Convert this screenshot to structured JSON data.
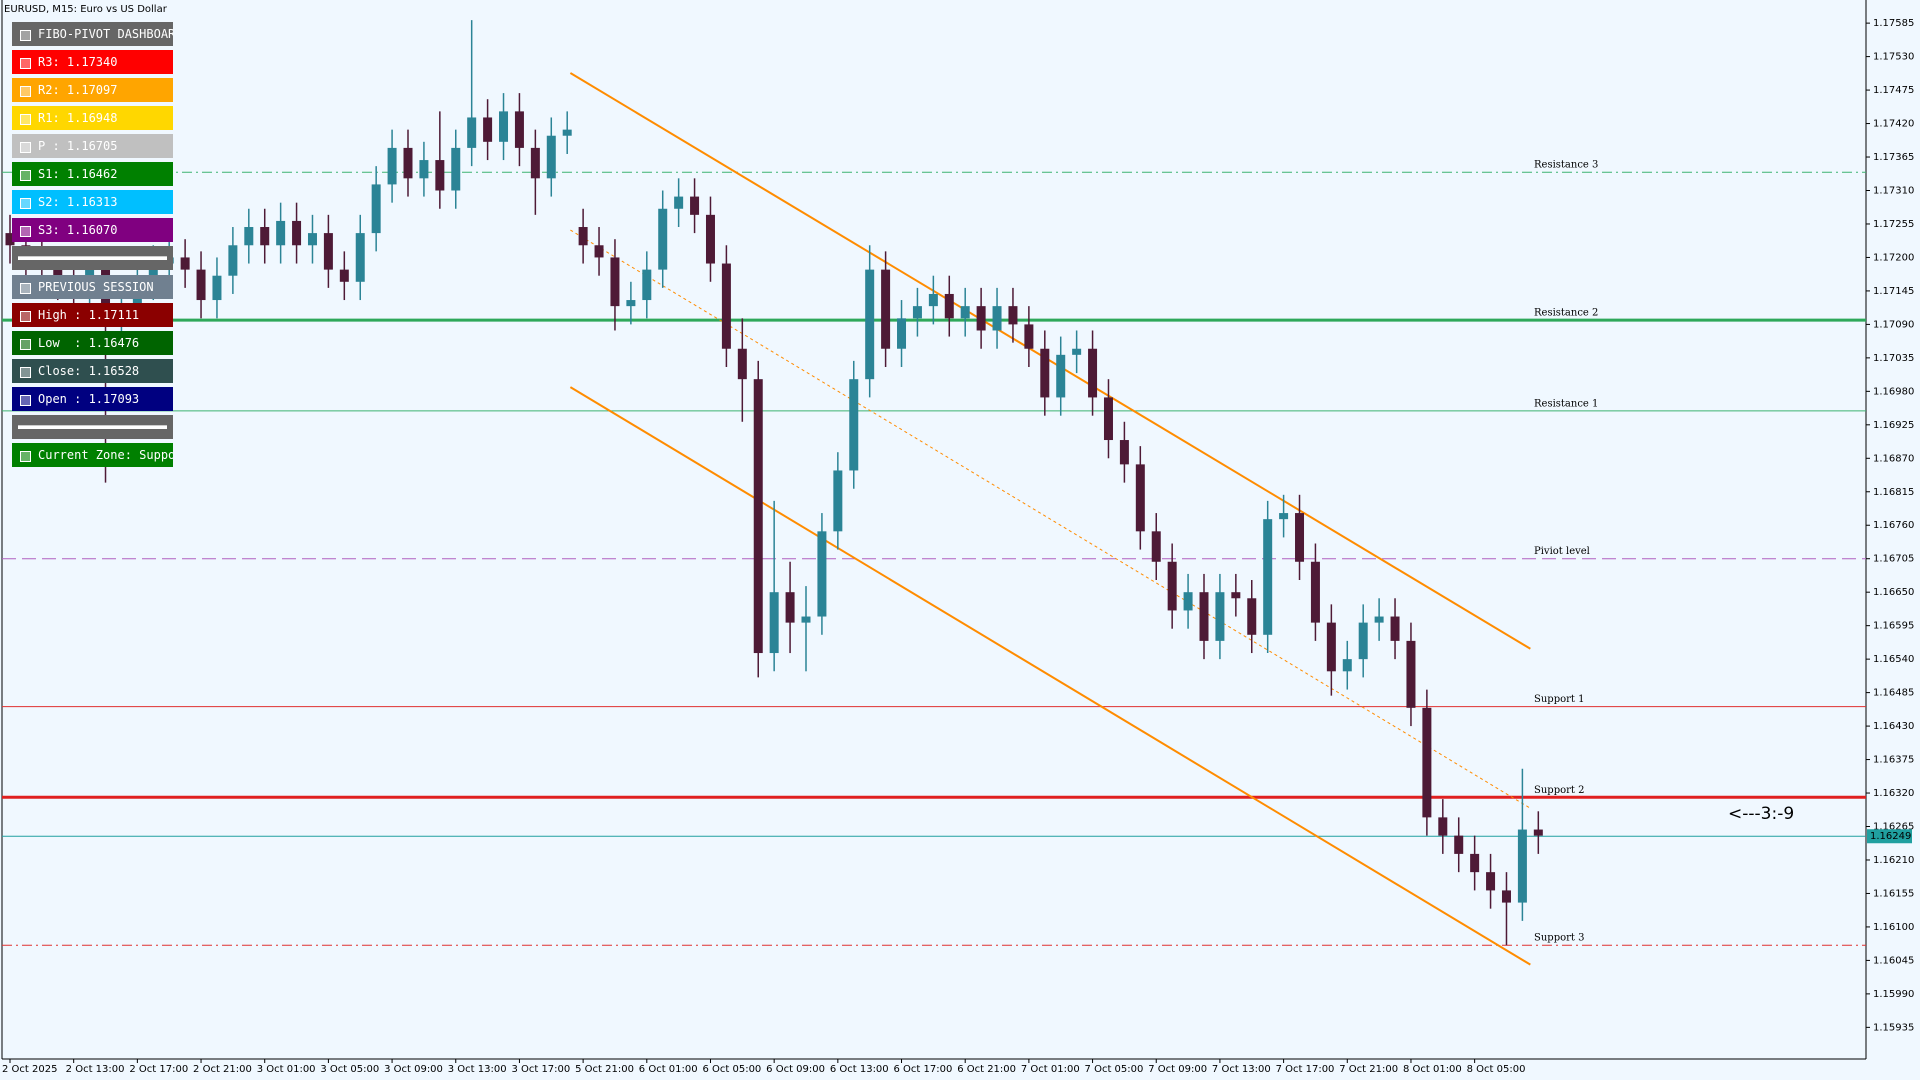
{
  "chart_data": {
    "type": "candlestick",
    "title": "EURUSD, M15:  Euro vs US Dollar",
    "colors": {
      "up": "#2b8496",
      "down": "#4e1a36"
    },
    "grid": false,
    "open": [
      1.1724,
      1.1722,
      1.172,
      1.1718,
      1.1716,
      1.1714,
      1.1718,
      1.171,
      1.1712,
      1.1716,
      1.1719,
      1.172,
      1.1718,
      1.1713,
      1.1717,
      1.1722,
      1.1725,
      1.1722,
      1.1726,
      1.1722,
      1.1724,
      1.1718,
      1.1716,
      1.1724,
      1.1732,
      1.1738,
      1.1733,
      1.1736,
      1.1731,
      1.1738,
      1.1743,
      1.1739,
      1.1744,
      1.1738,
      1.1733,
      1.174,
      1.1725,
      1.1722,
      1.172,
      1.1712,
      1.1713,
      1.1718,
      1.1728,
      1.173,
      1.1727,
      1.1719,
      1.1705,
      1.17,
      1.1655,
      1.1665,
      1.166,
      1.1661,
      1.1675,
      1.1685,
      1.17,
      1.1718,
      1.1705,
      1.171,
      1.1712,
      1.1714,
      1.171,
      1.1712,
      1.1708,
      1.1712,
      1.1709,
      1.1705,
      1.1697,
      1.1704,
      1.1705,
      1.1697,
      1.169,
      1.1686,
      1.1675,
      1.167,
      1.1662,
      1.1665,
      1.1657,
      1.1665,
      1.1664,
      1.1658,
      1.1677,
      1.1678,
      1.167,
      1.166,
      1.1652,
      1.1654,
      1.166,
      1.1661,
      1.1657,
      1.1646,
      1.1628,
      1.1625,
      1.1622,
      1.1619,
      1.1616,
      1.1614,
      1.1626
    ],
    "high": [
      1.1727,
      1.1725,
      1.1723,
      1.1721,
      1.1719,
      1.1721,
      1.1721,
      1.1715,
      1.1719,
      1.1722,
      1.1723,
      1.1723,
      1.1721,
      1.172,
      1.1725,
      1.1728,
      1.1728,
      1.1729,
      1.1729,
      1.1727,
      1.1727,
      1.1721,
      1.1727,
      1.1735,
      1.1741,
      1.1741,
      1.1739,
      1.1744,
      1.1741,
      1.1759,
      1.1746,
      1.1747,
      1.1747,
      1.1741,
      1.1743,
      1.1744,
      1.1728,
      1.1725,
      1.1723,
      1.1716,
      1.1721,
      1.1731,
      1.1733,
      1.1733,
      1.173,
      1.1722,
      1.171,
      1.1703,
      1.168,
      1.167,
      1.1666,
      1.1678,
      1.1688,
      1.1703,
      1.1722,
      1.1721,
      1.1713,
      1.1715,
      1.1717,
      1.1717,
      1.1715,
      1.1715,
      1.1715,
      1.1715,
      1.1712,
      1.1708,
      1.1707,
      1.1708,
      1.1708,
      1.17,
      1.1693,
      1.1689,
      1.1678,
      1.1673,
      1.1668,
      1.1668,
      1.1668,
      1.1668,
      1.1667,
      1.168,
      1.1681,
      1.1681,
      1.1673,
      1.1663,
      1.1657,
      1.1663,
      1.1664,
      1.1664,
      1.166,
      1.1649,
      1.1631,
      1.1628,
      1.1625,
      1.1622,
      1.1619,
      1.1636,
      1.1629
    ],
    "low": [
      1.1719,
      1.1717,
      1.1715,
      1.1713,
      1.1711,
      1.1711,
      1.1683,
      1.1707,
      1.1709,
      1.1713,
      1.1716,
      1.1715,
      1.171,
      1.171,
      1.1714,
      1.1719,
      1.1719,
      1.1719,
      1.1719,
      1.1719,
      1.1715,
      1.1713,
      1.1713,
      1.1721,
      1.1729,
      1.173,
      1.173,
      1.1728,
      1.1728,
      1.1735,
      1.1736,
      1.1736,
      1.1735,
      1.1727,
      1.173,
      1.1737,
      1.1719,
      1.1717,
      1.1708,
      1.1709,
      1.171,
      1.1715,
      1.1725,
      1.1724,
      1.1716,
      1.1702,
      1.1693,
      1.1651,
      1.1652,
      1.1655,
      1.1652,
      1.1658,
      1.1672,
      1.1682,
      1.1697,
      1.1702,
      1.1702,
      1.1707,
      1.1709,
      1.1707,
      1.1707,
      1.1705,
      1.1705,
      1.1706,
      1.1702,
      1.1694,
      1.1694,
      1.1701,
      1.1694,
      1.1687,
      1.1683,
      1.1672,
      1.1667,
      1.1659,
      1.1659,
      1.1654,
      1.1654,
      1.1661,
      1.1655,
      1.1655,
      1.1674,
      1.1667,
      1.1657,
      1.1648,
      1.1649,
      1.1651,
      1.1657,
      1.1654,
      1.1643,
      1.1625,
      1.1622,
      1.1619,
      1.1616,
      1.1613,
      1.1607,
      1.1611,
      1.1622
    ],
    "close": [
      1.1722,
      1.172,
      1.1718,
      1.1716,
      1.1714,
      1.1718,
      1.171,
      1.1712,
      1.1716,
      1.1719,
      1.172,
      1.1718,
      1.1713,
      1.1717,
      1.1722,
      1.1725,
      1.1722,
      1.1726,
      1.1722,
      1.1724,
      1.1718,
      1.1716,
      1.1724,
      1.1732,
      1.1738,
      1.1733,
      1.1736,
      1.1731,
      1.1738,
      1.1743,
      1.1739,
      1.1744,
      1.1738,
      1.1733,
      1.174,
      1.1741,
      1.1722,
      1.172,
      1.1712,
      1.1713,
      1.1718,
      1.1728,
      1.173,
      1.1727,
      1.1719,
      1.1705,
      1.17,
      1.1655,
      1.1665,
      1.166,
      1.1661,
      1.1675,
      1.1685,
      1.17,
      1.1718,
      1.1705,
      1.171,
      1.1712,
      1.1714,
      1.171,
      1.1712,
      1.1708,
      1.1712,
      1.1709,
      1.1705,
      1.1697,
      1.1704,
      1.1705,
      1.1697,
      1.169,
      1.1686,
      1.1675,
      1.167,
      1.1662,
      1.1665,
      1.1657,
      1.1665,
      1.1664,
      1.1658,
      1.1677,
      1.1678,
      1.167,
      1.166,
      1.1652,
      1.1654,
      1.166,
      1.1661,
      1.1657,
      1.1646,
      1.1628,
      1.1625,
      1.1622,
      1.1619,
      1.1616,
      1.1614,
      1.1626,
      1.1625
    ],
    "xticks": [
      {
        "value": 0,
        "label": "2 Oct 2025"
      },
      {
        "value": 4,
        "label": "2 Oct 13:00"
      },
      {
        "value": 8,
        "label": "2 Oct 17:00"
      },
      {
        "value": 12,
        "label": "2 Oct 21:00"
      },
      {
        "value": 16,
        "label": "3 Oct 01:00"
      },
      {
        "value": 20,
        "label": "3 Oct 05:00"
      },
      {
        "value": 24,
        "label": "3 Oct 09:00"
      },
      {
        "value": 28,
        "label": "3 Oct 13:00"
      },
      {
        "value": 32,
        "label": "3 Oct 17:00"
      },
      {
        "value": 36,
        "label": "5 Oct 21:00"
      },
      {
        "value": 40,
        "label": "6 Oct 01:00"
      },
      {
        "value": 44,
        "label": "6 Oct 05:00"
      },
      {
        "value": 48,
        "label": "6 Oct 09:00"
      },
      {
        "value": 52,
        "label": "6 Oct 13:00"
      },
      {
        "value": 56,
        "label": "6 Oct 17:00"
      },
      {
        "value": 60,
        "label": "6 Oct 21:00"
      },
      {
        "value": 64,
        "label": "7 Oct 01:00"
      },
      {
        "value": 68,
        "label": "7 Oct 05:00"
      },
      {
        "value": 72,
        "label": "7 Oct 09:00"
      },
      {
        "value": 76,
        "label": "7 Oct 13:00"
      },
      {
        "value": 80,
        "label": "7 Oct 17:00"
      },
      {
        "value": 84,
        "label": "7 Oct 21:00"
      },
      {
        "value": 88,
        "label": "8 Oct 01:00"
      },
      {
        "value": 92,
        "label": "8 Oct 05:00"
      }
    ],
    "ylim": [
      1.15883,
      1.17623
    ],
    "yticks": [
      1.17585,
      {
        "value": 1.1753,
        "label": "1.17530"
      },
      1.17475,
      {
        "value": 1.1742,
        "label": "1.17420"
      },
      1.17365,
      {
        "value": 1.1731,
        "label": "1.17310"
      },
      1.17255,
      {
        "value": 1.172,
        "label": "1.17200"
      },
      1.17145,
      {
        "value": 1.1709,
        "label": "1.17090"
      },
      1.17035,
      {
        "value": 1.1698,
        "label": "1.16980"
      },
      1.16925,
      {
        "value": 1.1687,
        "label": "1.16870"
      },
      1.16815,
      {
        "value": 1.1676,
        "label": "1.16760"
      },
      1.16705,
      {
        "value": 1.1665,
        "label": "1.16650"
      },
      1.16595,
      {
        "value": 1.1654,
        "label": "1.16540"
      },
      1.16485,
      {
        "value": 1.1643,
        "label": "1.16430"
      },
      1.16375,
      {
        "value": 1.1632,
        "label": "1.16320"
      },
      1.16265,
      {
        "value": 1.1621,
        "label": "1.16210"
      },
      1.16155,
      {
        "value": 1.161,
        "label": "1.16100"
      },
      1.16045,
      {
        "value": 1.1599,
        "label": "1.15990"
      },
      1.15935
    ],
    "levels": [
      {
        "label": "Resistance 3",
        "value": 1.1734,
        "color": "#3cb371",
        "width": 1,
        "style": "dashdot"
      },
      {
        "label": "Resistance 2",
        "value": 1.17097,
        "color": "#2ea85a",
        "width": 3,
        "style": "solid"
      },
      {
        "label": "Resistance 1",
        "value": 1.16948,
        "color": "#3cb371",
        "width": 1,
        "style": "solid"
      },
      {
        "label": "Piviot level",
        "value": 1.16705,
        "color": "#b060c0",
        "width": 1,
        "style": "dashed"
      },
      {
        "label": "Support 1",
        "value": 1.16462,
        "color": "#e03030",
        "width": 1,
        "style": "solid"
      },
      {
        "label": "Support 2",
        "value": 1.16313,
        "color": "#e02020",
        "width": 3,
        "style": "solid"
      },
      {
        "label": "Support 3",
        "value": 1.1607,
        "color": "#e03030",
        "width": 1,
        "style": "dashdot"
      }
    ],
    "channel": {
      "color": "#ff8c00",
      "x": [
        35.2,
        95.5
      ],
      "upper": [
        1.17503,
        1.16557
      ],
      "mid": [
        1.17245,
        1.16295
      ],
      "lower": [
        1.16987,
        1.16038
      ]
    },
    "current_price": 1.16249,
    "annotation": "<---3:-9"
  },
  "dashboard": {
    "title": "FIBO-PIVOT DASHBOARD",
    "levels": [
      "R3: 1.17340",
      "R2: 1.17097",
      "R1: 1.16948",
      "P : 1.16705",
      "S1: 1.16462",
      "S2: 1.16313",
      "S3: 1.16070"
    ],
    "session_title": "PREVIOUS SESSION",
    "session": [
      "High : 1.17111",
      "Low  : 1.16476",
      "Close: 1.16528",
      "Open : 1.17093"
    ],
    "zone": "Current Zone: Support"
  }
}
